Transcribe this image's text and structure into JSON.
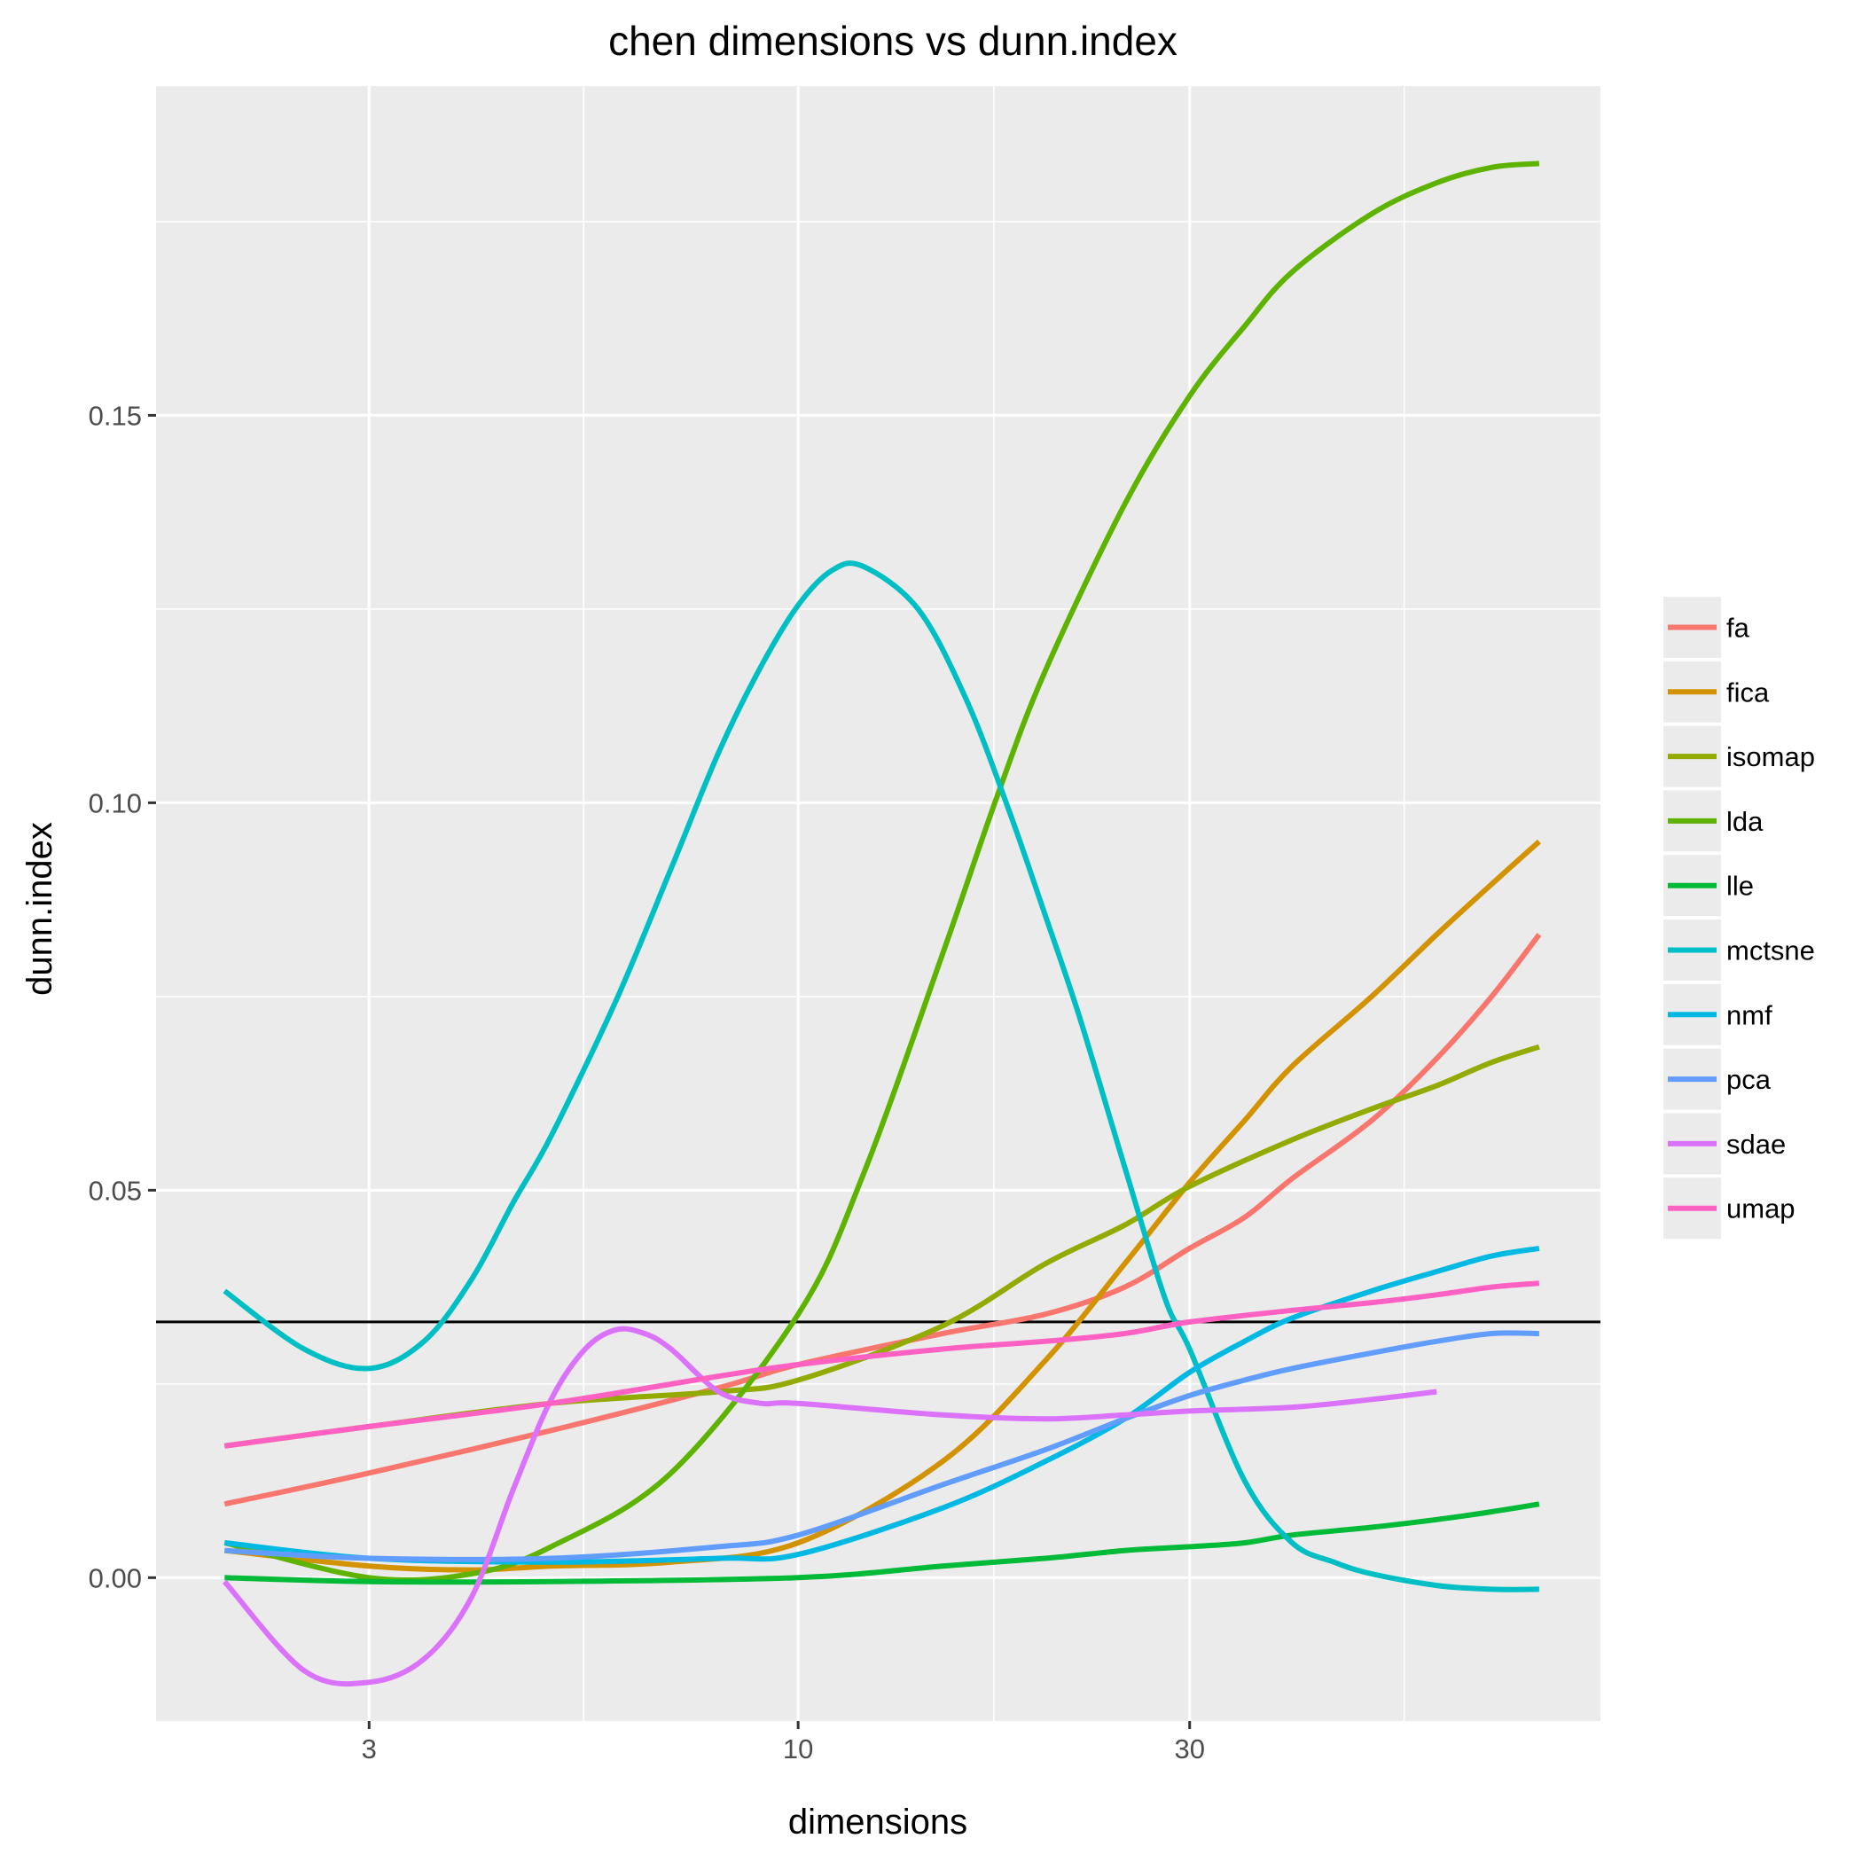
{
  "chart_data": {
    "type": "line",
    "title": "chen dimensions vs dunn.index",
    "xlabel": "dimensions",
    "ylabel": "dunn.index",
    "x_scale": "log10",
    "xlim": [
      1.65,
      95
    ],
    "ylim": [
      -0.0185,
      0.1925
    ],
    "x_ticks": [
      3,
      10,
      30
    ],
    "x_tick_labels": [
      "3",
      "10",
      "30"
    ],
    "x_minor_ticks": [
      5.477,
      17.32,
      54.77
    ],
    "y_ticks": [
      0,
      0.05,
      0.1,
      0.15
    ],
    "y_tick_labels": [
      "0.00",
      "0.05",
      "0.10",
      "0.15"
    ],
    "y_minor_ticks": [
      0.025,
      0.075,
      0.125,
      0.175
    ],
    "grid": true,
    "legend_position": "right",
    "reference_line": {
      "y": 0.033,
      "color": "#000000"
    },
    "series": [
      {
        "name": "fa",
        "color": "#F8766D",
        "x": [
          2,
          3,
          5,
          8,
          10,
          15,
          20,
          25,
          30,
          35,
          40,
          50,
          60,
          70,
          80
        ],
        "y": [
          0.0095,
          0.0135,
          0.019,
          0.0245,
          0.0275,
          0.0315,
          0.034,
          0.0375,
          0.0425,
          0.0465,
          0.0515,
          0.059,
          0.067,
          0.075,
          0.083
        ]
      },
      {
        "name": "fica",
        "color": "#D39200",
        "x": [
          2,
          3,
          4,
          5,
          7,
          10,
          15,
          20,
          25,
          30,
          35,
          40,
          50,
          60,
          70,
          80
        ],
        "y": [
          0.0035,
          0.0015,
          0.001,
          0.0015,
          0.002,
          0.0045,
          0.015,
          0.028,
          0.0405,
          0.051,
          0.059,
          0.066,
          0.075,
          0.083,
          0.0895,
          0.095
        ]
      },
      {
        "name": "isomap",
        "color": "#93AA00",
        "x": [
          2,
          3,
          5,
          8,
          10,
          15,
          20,
          25,
          30,
          40,
          50,
          60,
          70,
          80
        ],
        "y": [
          0.017,
          0.0195,
          0.0225,
          0.024,
          0.0255,
          0.0325,
          0.0405,
          0.0455,
          0.0505,
          0.0565,
          0.0605,
          0.0635,
          0.0665,
          0.0685
        ]
      },
      {
        "name": "lda",
        "color": "#5EB300",
        "x": [
          2,
          3,
          4,
          5,
          7,
          10,
          12,
          15,
          17.5,
          20,
          25,
          30,
          35,
          40,
          50,
          60,
          70,
          80
        ],
        "y": [
          0.0045,
          0.0,
          0.0005,
          0.004,
          0.0135,
          0.034,
          0.052,
          0.0805,
          0.101,
          0.117,
          0.1385,
          0.1525,
          0.1615,
          0.1685,
          0.176,
          0.18,
          0.182,
          0.1825
        ]
      },
      {
        "name": "lle",
        "color": "#00BA38",
        "x": [
          2,
          3,
          5,
          10,
          15,
          20,
          25,
          30,
          35,
          40,
          50,
          60,
          70,
          80
        ],
        "y": [
          0.0,
          -0.0005,
          -0.0005,
          0.0,
          0.0015,
          0.0025,
          0.0035,
          0.004,
          0.0045,
          0.0055,
          0.0065,
          0.0075,
          0.0085,
          0.0095
        ]
      },
      {
        "name": "mctsne",
        "color": "#00BFC4",
        "x": [
          2,
          2.5,
          3,
          3.5,
          4,
          4.5,
          5,
          6,
          7,
          8,
          9,
          10,
          11,
          12,
          14,
          16,
          18,
          20,
          22,
          25,
          28,
          30,
          35,
          40,
          45,
          50,
          60,
          70,
          80
        ],
        "y": [
          0.037,
          0.0295,
          0.027,
          0.0305,
          0.0385,
          0.0485,
          0.057,
          0.0745,
          0.0915,
          0.1065,
          0.1175,
          0.1255,
          0.13,
          0.1305,
          0.125,
          0.1135,
          0.0995,
          0.0855,
          0.0725,
          0.053,
          0.036,
          0.0295,
          0.0125,
          0.0045,
          0.002,
          0.0005,
          -0.001,
          -0.0015,
          -0.0015
        ]
      },
      {
        "name": "nmf",
        "color": "#00B9E3",
        "x": [
          2,
          3,
          5,
          8,
          10,
          15,
          20,
          25,
          30,
          35,
          40,
          50,
          60,
          70,
          80
        ],
        "y": [
          0.0045,
          0.0025,
          0.002,
          0.0025,
          0.003,
          0.009,
          0.015,
          0.0205,
          0.0265,
          0.0305,
          0.0335,
          0.037,
          0.0395,
          0.0415,
          0.0425
        ]
      },
      {
        "name": "pca",
        "color": "#619CFF",
        "x": [
          2,
          3,
          5,
          8,
          10,
          15,
          20,
          25,
          30,
          35,
          40,
          50,
          60,
          70,
          80
        ],
        "y": [
          0.0035,
          0.0025,
          0.0025,
          0.004,
          0.0055,
          0.012,
          0.0165,
          0.0205,
          0.0235,
          0.0255,
          0.027,
          0.029,
          0.0305,
          0.0315,
          0.0315
        ]
      },
      {
        "name": "sdae",
        "color": "#DB72FB",
        "x": [
          2,
          2.5,
          3,
          3.5,
          4,
          4.5,
          5,
          5.5,
          6,
          6.5,
          7,
          8,
          9,
          10,
          15,
          20,
          25,
          30,
          40,
          50,
          60
        ],
        "y": [
          -0.0005,
          -0.012,
          -0.0135,
          -0.0105,
          -0.0025,
          0.0115,
          0.023,
          0.0295,
          0.032,
          0.0315,
          0.0295,
          0.024,
          0.0225,
          0.0225,
          0.021,
          0.0205,
          0.021,
          0.0215,
          0.022,
          0.023,
          0.024
        ]
      },
      {
        "name": "umap",
        "color": "#FF61C3",
        "x": [
          2,
          3,
          5,
          8,
          10,
          15,
          20,
          25,
          30,
          40,
          50,
          60,
          70,
          80
        ],
        "y": [
          0.017,
          0.0195,
          0.0225,
          0.026,
          0.0275,
          0.0295,
          0.0305,
          0.0315,
          0.033,
          0.0345,
          0.0355,
          0.0365,
          0.0375,
          0.038
        ]
      }
    ]
  }
}
